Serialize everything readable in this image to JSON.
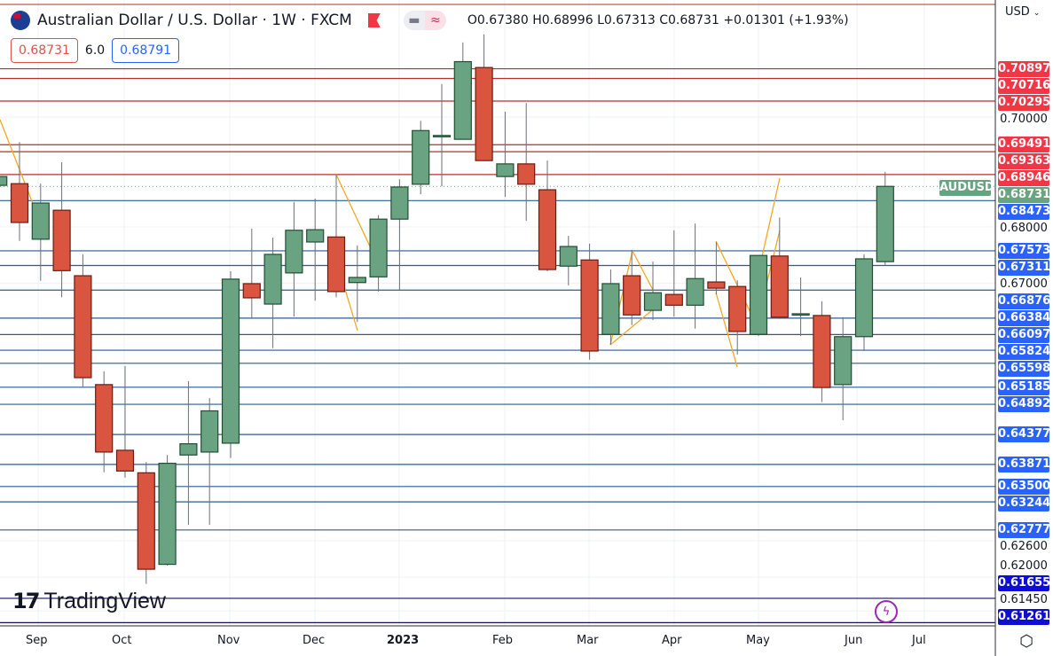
{
  "header": {
    "title": "Australian Dollar / U.S. Dollar · 1W · FXCM",
    "ohlc": "O0.67380 H0.68996 L0.67313 C0.68731 +0.01301 (+1.93%)",
    "sell_price": "0.68731",
    "spread": "6.0",
    "buy_price": "0.68791"
  },
  "price_axis": {
    "currency": "USD",
    "currency_menu_icon": "chevron-down-icon",
    "scale": "log",
    "tick_labels": [
      "0.70000",
      "0.68000",
      "0.67000",
      "0.62600",
      "0.62000",
      "0.61450"
    ],
    "symbol_tag": "AUDUSD",
    "last_price": "0.68731"
  },
  "time_axis": {
    "labels": [
      "Sep",
      "Oct",
      "Nov",
      "Dec",
      "2023",
      "Feb",
      "Mar",
      "Apr",
      "May",
      "Jun",
      "Jul"
    ]
  },
  "colors": {
    "up": "#6aa381",
    "down": "#d9553f",
    "resistance": "#f23645",
    "support": "#2962ff",
    "deep_support": "#0d0dd6",
    "pattern": "#f5a623"
  },
  "resistance_levels": [
    "0.70897",
    "0.70716",
    "0.70295",
    "0.69491",
    "0.69363",
    "0.68946"
  ],
  "support_levels": [
    "0.68473",
    "0.67573",
    "0.67311",
    "0.66876",
    "0.66384",
    "0.66097",
    "0.65824",
    "0.65598",
    "0.65185",
    "0.64892",
    "0.64377",
    "0.63871",
    "0.63500",
    "0.63244",
    "0.62777"
  ],
  "deep_support_levels": [
    "0.61655",
    "0.61261"
  ],
  "candles": [
    [
      0.6875,
      0.6894,
      0.6872,
      0.6891
    ],
    [
      0.6878,
      0.6954,
      0.6775,
      0.6808
    ],
    [
      0.6778,
      0.6878,
      0.6704,
      0.6843
    ],
    [
      0.683,
      0.6917,
      0.6675,
      0.6722
    ],
    [
      0.6713,
      0.6751,
      0.6518,
      0.6535
    ],
    [
      0.6523,
      0.6546,
      0.6374,
      0.6408
    ],
    [
      0.6411,
      0.6555,
      0.6365,
      0.6376
    ],
    [
      0.6373,
      0.6391,
      0.6189,
      0.6213
    ],
    [
      0.6221,
      0.6403,
      0.6219,
      0.6389
    ],
    [
      0.6403,
      0.6529,
      0.6286,
      0.6422
    ],
    [
      0.6408,
      0.65,
      0.6286,
      0.6478
    ],
    [
      0.6423,
      0.6721,
      0.6398,
      0.6707
    ],
    [
      0.6699,
      0.6797,
      0.6637,
      0.6674
    ],
    [
      0.6663,
      0.6781,
      0.6586,
      0.6751
    ],
    [
      0.6718,
      0.6845,
      0.6641,
      0.6794
    ],
    [
      0.6773,
      0.6851,
      0.6669,
      0.6795
    ],
    [
      0.6782,
      0.6894,
      0.6675,
      0.6685
    ],
    [
      0.6701,
      0.6767,
      0.6632,
      0.671
    ],
    [
      0.6711,
      0.6821,
      0.6685,
      0.6814
    ],
    [
      0.6814,
      0.6886,
      0.6688,
      0.6872
    ],
    [
      0.6877,
      0.6993,
      0.6859,
      0.6975
    ],
    [
      0.6965,
      0.7061,
      0.6873,
      0.6966
    ],
    [
      0.6959,
      0.7139,
      0.6959,
      0.7103
    ],
    [
      0.7092,
      0.7154,
      0.692,
      0.692
    ],
    [
      0.6891,
      0.701,
      0.6854,
      0.6914
    ],
    [
      0.6914,
      0.7026,
      0.6811,
      0.6877
    ],
    [
      0.6867,
      0.692,
      0.6721,
      0.6724
    ],
    [
      0.673,
      0.6784,
      0.6696,
      0.6765
    ],
    [
      0.6741,
      0.677,
      0.6566,
      0.6581
    ],
    [
      0.661,
      0.6724,
      0.6592,
      0.6699
    ],
    [
      0.6713,
      0.6759,
      0.6626,
      0.6644
    ],
    [
      0.6652,
      0.6738,
      0.6635,
      0.6683
    ],
    [
      0.668,
      0.6794,
      0.6641,
      0.6661
    ],
    [
      0.6661,
      0.6806,
      0.662,
      0.6708
    ],
    [
      0.6702,
      0.6773,
      0.668,
      0.6691
    ],
    [
      0.6694,
      0.6705,
      0.6575,
      0.6615
    ],
    [
      0.661,
      0.6749,
      0.6607,
      0.6749
    ],
    [
      0.6748,
      0.6817,
      0.6637,
      0.664
    ],
    [
      0.6645,
      0.671,
      0.6607,
      0.6646
    ],
    [
      0.6643,
      0.6668,
      0.6493,
      0.6518
    ],
    [
      0.6523,
      0.664,
      0.6462,
      0.6606
    ],
    [
      0.6606,
      0.6751,
      0.6581,
      0.6743
    ],
    [
      0.6738,
      0.68996,
      0.67313,
      0.68731
    ]
  ],
  "branding": {
    "name": "TradingView",
    "logo_text": "TV"
  },
  "icons": {
    "bolt": "lightning-icon",
    "settings": "settings-icon",
    "flag": "flag-icon"
  }
}
